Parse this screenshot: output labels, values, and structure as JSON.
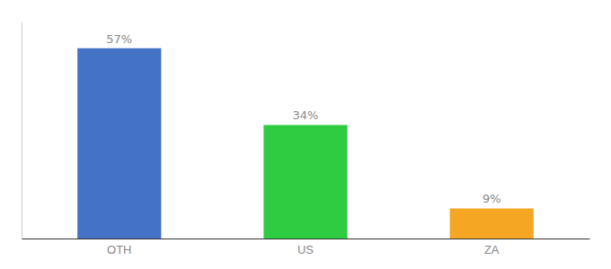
{
  "chart_data": {
    "type": "bar",
    "categories": [
      "OTH",
      "US",
      "ZA"
    ],
    "values": [
      57,
      34,
      9
    ],
    "value_labels": [
      "57%",
      "34%",
      "9%"
    ],
    "colors": [
      "#4472c4",
      "#2ecc40",
      "#f5a623"
    ],
    "ylim": [
      0,
      65
    ],
    "data_labels": true,
    "tick_labels": "x",
    "grid": false
  }
}
